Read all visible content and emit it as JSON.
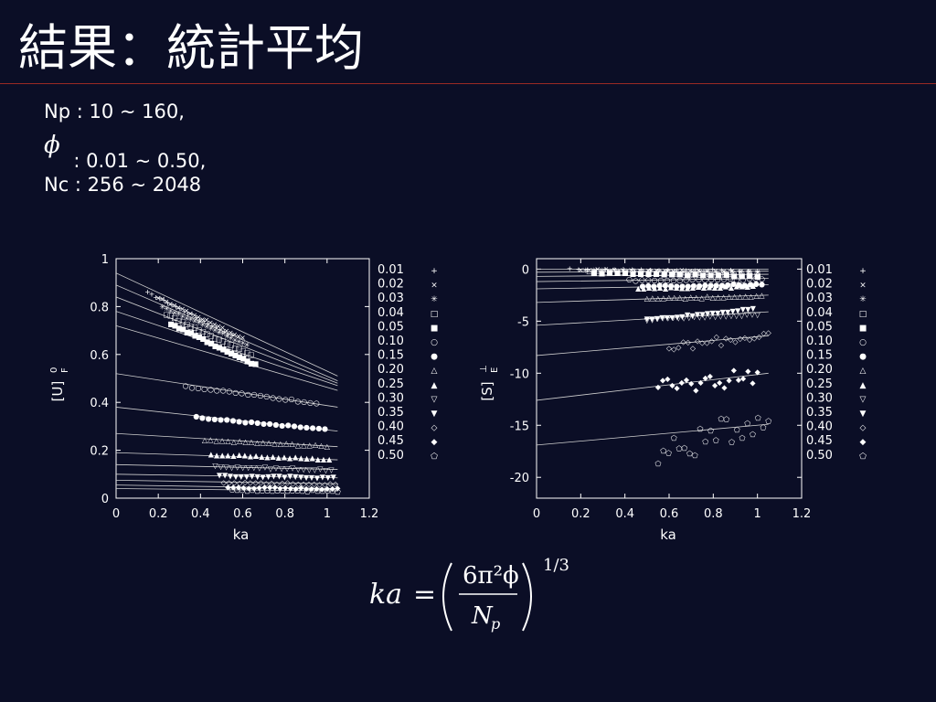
{
  "slide": {
    "title": "結果：統計平均",
    "params": {
      "np_line": "Np : 10 ~ 160,",
      "phi_symbol": "ϕ",
      "phi_line": ": 0.01 ~ 0.50,",
      "nc_line": "Nc : 256 ~ 2048"
    },
    "formula": {
      "lhs": "ka",
      "equals": "=",
      "numerator": "6π²ϕ",
      "denominator": "N",
      "denominator_sub": "p",
      "exponent": "1/3"
    }
  },
  "chart_data": [
    {
      "type": "scatter",
      "ylabel": "[U]F0",
      "ylabel_main": "[U]",
      "ylabel_sup": "0",
      "ylabel_sub": "F",
      "xlabel": "ka",
      "xlim": [
        0,
        1.2
      ],
      "ylim": [
        0,
        1
      ],
      "xticks": [
        "0",
        "0.2",
        "0.4",
        "0.6",
        "0.8",
        "1",
        "1.2"
      ],
      "yticks": [
        "0",
        "0.2",
        "0.4",
        "0.6",
        "0.8",
        "1"
      ],
      "legend_position": "right",
      "fit_lines": [
        {
          "x": [
            0,
            1.05
          ],
          "y": [
            0.94,
            0.51
          ]
        },
        {
          "x": [
            0,
            1.05
          ],
          "y": [
            0.89,
            0.49
          ]
        },
        {
          "x": [
            0,
            1.05
          ],
          "y": [
            0.84,
            0.48
          ]
        },
        {
          "x": [
            0,
            1.05
          ],
          "y": [
            0.78,
            0.47
          ]
        },
        {
          "x": [
            0,
            1.05
          ],
          "y": [
            0.72,
            0.45
          ]
        },
        {
          "x": [
            0,
            1.05
          ],
          "y": [
            0.52,
            0.38
          ]
        },
        {
          "x": [
            0,
            1.05
          ],
          "y": [
            0.38,
            0.28
          ]
        },
        {
          "x": [
            0,
            1.05
          ],
          "y": [
            0.27,
            0.215
          ]
        },
        {
          "x": [
            0,
            1.05
          ],
          "y": [
            0.19,
            0.16
          ]
        },
        {
          "x": [
            0,
            1.05
          ],
          "y": [
            0.14,
            0.12
          ]
        },
        {
          "x": [
            0,
            1.05
          ],
          "y": [
            0.1,
            0.085
          ]
        },
        {
          "x": [
            0,
            1.05
          ],
          "y": [
            0.075,
            0.06
          ]
        },
        {
          "x": [
            0,
            1.05
          ],
          "y": [
            0.055,
            0.04
          ]
        },
        {
          "x": [
            0,
            1.05
          ],
          "y": [
            0.04,
            0.03
          ]
        }
      ],
      "series": [
        {
          "name": "0.01",
          "marker": "+",
          "x_range": [
            0.15,
            0.55
          ],
          "y_range": [
            0.86,
            0.68
          ]
        },
        {
          "name": "0.02",
          "marker": "×",
          "x_range": [
            0.2,
            0.6
          ],
          "y_range": [
            0.84,
            0.67
          ]
        },
        {
          "name": "0.03",
          "marker": "✳",
          "x_range": [
            0.22,
            0.62
          ],
          "y_range": [
            0.8,
            0.64
          ]
        },
        {
          "name": "0.04",
          "marker": "□",
          "x_range": [
            0.24,
            0.64
          ],
          "y_range": [
            0.77,
            0.6
          ]
        },
        {
          "name": "0.05",
          "marker": "■",
          "x_range": [
            0.26,
            0.66
          ],
          "y_range": [
            0.73,
            0.56
          ]
        },
        {
          "name": "0.10",
          "marker": "○",
          "x_range": [
            0.33,
            0.95
          ],
          "y_range": [
            0.47,
            0.4
          ]
        },
        {
          "name": "0.15",
          "marker": "●",
          "x_range": [
            0.38,
            0.99
          ],
          "y_range": [
            0.34,
            0.29
          ]
        },
        {
          "name": "0.20",
          "marker": "△",
          "x_range": [
            0.42,
            1.0
          ],
          "y_range": [
            0.245,
            0.22
          ]
        },
        {
          "name": "0.25",
          "marker": "▲",
          "x_range": [
            0.45,
            1.01
          ],
          "y_range": [
            0.185,
            0.165
          ]
        },
        {
          "name": "0.30",
          "marker": "▽",
          "x_range": [
            0.47,
            1.02
          ],
          "y_range": [
            0.135,
            0.12
          ]
        },
        {
          "name": "0.35",
          "marker": "▼",
          "x_range": [
            0.49,
            1.03
          ],
          "y_range": [
            0.095,
            0.088
          ]
        },
        {
          "name": "0.40",
          "marker": "◇",
          "x_range": [
            0.51,
            1.04
          ],
          "y_range": [
            0.068,
            0.06
          ]
        },
        {
          "name": "0.45",
          "marker": "◆",
          "x_range": [
            0.53,
            1.05
          ],
          "y_range": [
            0.048,
            0.042
          ]
        },
        {
          "name": "0.50",
          "marker": "⬠",
          "x_range": [
            0.55,
            1.05
          ],
          "y_range": [
            0.035,
            0.03
          ]
        }
      ]
    },
    {
      "type": "scatter",
      "ylabel": "[S]E⊥",
      "ylabel_main": "[S]",
      "ylabel_sup": "⊥",
      "ylabel_sub": "E",
      "xlabel": "ka",
      "xlim": [
        0,
        1.2
      ],
      "ylim": [
        -22,
        1
      ],
      "xticks": [
        "0",
        "0.2",
        "0.4",
        "0.6",
        "0.8",
        "1",
        "1.2"
      ],
      "yticks": [
        "0",
        "-5",
        "-10",
        "-15",
        "-20"
      ],
      "legend_position": "right",
      "fit_lines": [
        {
          "x": [
            0,
            1.05
          ],
          "y": [
            0.0,
            0.0
          ]
        },
        {
          "x": [
            0,
            1.05
          ],
          "y": [
            -0.3,
            -0.2
          ]
        },
        {
          "x": [
            0,
            1.05
          ],
          "y": [
            -0.7,
            -0.5
          ]
        },
        {
          "x": [
            0,
            1.05
          ],
          "y": [
            -1.2,
            -0.9
          ]
        },
        {
          "x": [
            0,
            1.05
          ],
          "y": [
            -1.9,
            -1.5
          ]
        },
        {
          "x": [
            0,
            1.05
          ],
          "y": [
            -3.2,
            -2.5
          ]
        },
        {
          "x": [
            0,
            1.05
          ],
          "y": [
            -5.4,
            -4.1
          ]
        },
        {
          "x": [
            0,
            1.05
          ],
          "y": [
            -8.3,
            -6.4
          ]
        },
        {
          "x": [
            0,
            1.05
          ],
          "y": [
            -12.6,
            -10.0
          ]
        },
        {
          "x": [
            0,
            1.05
          ],
          "y": [
            -16.9,
            -14.9
          ]
        }
      ],
      "series": [
        {
          "name": "0.01",
          "marker": "+",
          "x_range": [
            0.15,
            1.0
          ],
          "y_range": [
            0.0,
            -0.1
          ]
        },
        {
          "name": "0.02",
          "marker": "×",
          "x_range": [
            0.2,
            1.0
          ],
          "y_range": [
            0.0,
            -0.2
          ]
        },
        {
          "name": "0.03",
          "marker": "✳",
          "x_range": [
            0.22,
            1.0
          ],
          "y_range": [
            -0.1,
            -0.3
          ]
        },
        {
          "name": "0.04",
          "marker": "□",
          "x_range": [
            0.24,
            1.0
          ],
          "y_range": [
            -0.2,
            -0.5
          ]
        },
        {
          "name": "0.05",
          "marker": "■",
          "x_range": [
            0.26,
            1.0
          ],
          "y_range": [
            -0.3,
            -0.6
          ]
        },
        {
          "name": "0.10",
          "marker": "○",
          "x_range": [
            0.42,
            1.02
          ],
          "y_range": [
            -1.0,
            -0.9
          ]
        },
        {
          "name": "0.15",
          "marker": "●",
          "x_range": [
            0.48,
            1.02
          ],
          "y_range": [
            -1.6,
            -1.4
          ]
        },
        {
          "name": "0.20",
          "marker": "△",
          "x_range": [
            0.5,
            1.02
          ],
          "y_range": [
            -2.8,
            -2.5
          ]
        },
        {
          "name": "0.25",
          "marker": "▲",
          "x_range": [
            0.46,
            0.98
          ],
          "y_range": [
            -1.8,
            -1.6
          ]
        },
        {
          "name": "0.30",
          "marker": "▽",
          "x_range": [
            0.5,
            1.0
          ],
          "y_range": [
            -4.8,
            -4.3
          ]
        },
        {
          "name": "0.35",
          "marker": "▼",
          "x_range": [
            0.5,
            0.98
          ],
          "y_range": [
            -4.8,
            -3.8
          ]
        },
        {
          "name": "0.40",
          "marker": "◇",
          "x_range": [
            0.6,
            1.05
          ],
          "y_range": [
            -7.5,
            -6.2
          ]
        },
        {
          "name": "0.45",
          "marker": "◆",
          "x_range": [
            0.55,
            1.0
          ],
          "y_range": [
            -11.5,
            -10.0
          ]
        },
        {
          "name": "0.50",
          "marker": "⬠",
          "x_range": [
            0.55,
            1.05
          ],
          "y_range": [
            -18.0,
            -14.0
          ]
        }
      ]
    }
  ]
}
